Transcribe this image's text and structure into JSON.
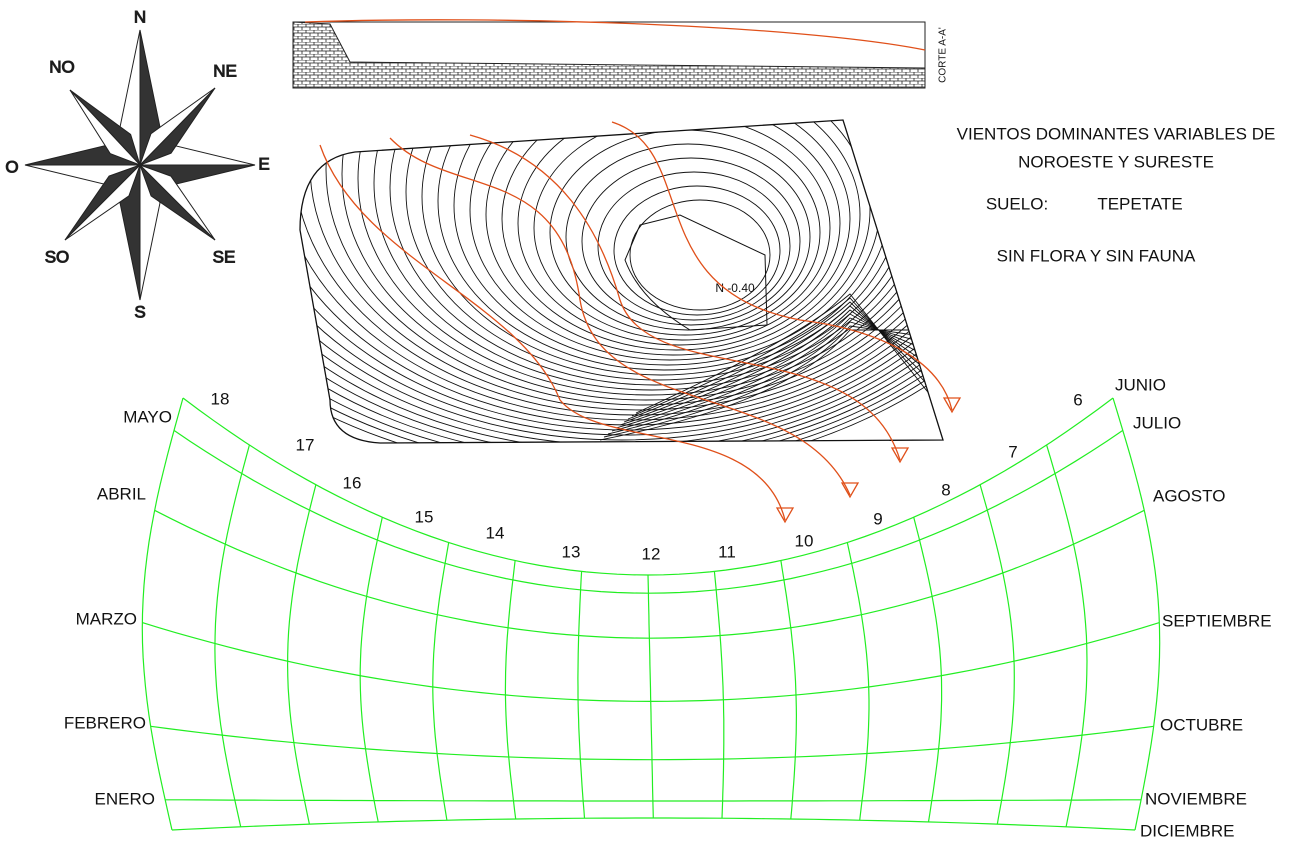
{
  "compass": {
    "n": "N",
    "no": "NO",
    "ne": "NE",
    "o": "O",
    "e": "E",
    "so": "SO",
    "se": "SE",
    "s": "S"
  },
  "section": {
    "label": "CORTE A-A'"
  },
  "plan": {
    "level": "N -0.40"
  },
  "notes": {
    "winds": [
      "VIENTOS DOMINANTES VARIABLES DE",
      "NOROESTE Y SURESTE"
    ],
    "soil_label": "SUELO:",
    "soil": "TEPETATE",
    "flora": "SIN FLORA Y SIN FAUNA"
  },
  "sun_chart": {
    "hours": [
      18,
      17,
      16,
      15,
      14,
      13,
      12,
      11,
      10,
      9,
      8,
      7,
      6
    ],
    "months_left": [
      "MAYO",
      "ABRIL",
      "MARZO",
      "FEBRERO",
      "ENERO"
    ],
    "months_right": [
      "JUNIO",
      "JULIO",
      "AGOSTO",
      "SEPTIEMBRE",
      "OCTUBRE",
      "NOVIEMBRE",
      "DICIEMBRE"
    ]
  }
}
